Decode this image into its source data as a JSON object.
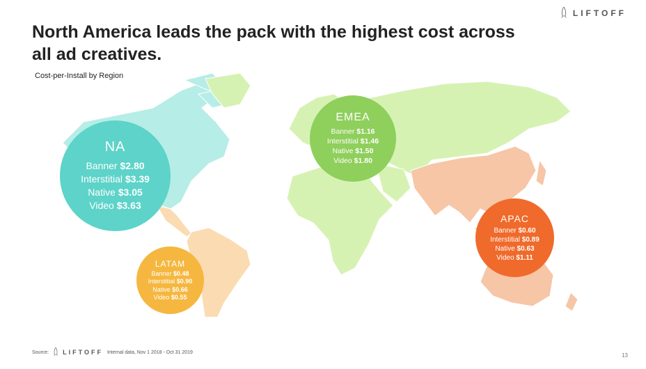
{
  "brand": {
    "name": "LIFTOFF"
  },
  "title": "North America leads the pack with the highest cost across all ad creatives.",
  "subtitle": "Cost-per-Install by Region",
  "colors": {
    "na": "#5dd3c9",
    "emea": "#8fcf5c",
    "apac": "#f06a2b",
    "latam": "#f5b73f",
    "map_na": "#b6ede6",
    "map_emea": "#d6f2b3",
    "map_apac": "#f6c6a6",
    "map_latam": "#fbdbb1"
  },
  "regions": {
    "na": {
      "name": "NA",
      "rows": [
        {
          "label": "Banner",
          "value": "$2.80"
        },
        {
          "label": "Interstitial",
          "value": "$3.39"
        },
        {
          "label": "Native",
          "value": "$3.05"
        },
        {
          "label": "Video",
          "value": "$3.63"
        }
      ]
    },
    "emea": {
      "name": "EMEA",
      "rows": [
        {
          "label": "Banner",
          "value": "$1.16"
        },
        {
          "label": "Interstitial",
          "value": "$1.46"
        },
        {
          "label": "Native",
          "value": "$1.50"
        },
        {
          "label": "Video",
          "value": "$1.80"
        }
      ]
    },
    "apac": {
      "name": "APAC",
      "rows": [
        {
          "label": "Banner",
          "value": "$0.60"
        },
        {
          "label": "Interstitial",
          "value": "$0.89"
        },
        {
          "label": "Native",
          "value": "$0.63"
        },
        {
          "label": "Video",
          "value": "$1.11"
        }
      ]
    },
    "latam": {
      "name": "LATAM",
      "rows": [
        {
          "label": "Banner",
          "value": "$0.48"
        },
        {
          "label": "Interstitial",
          "value": "$0.90"
        },
        {
          "label": "Native",
          "value": "$0.66"
        },
        {
          "label": "Video",
          "value": "$0.55"
        }
      ]
    }
  },
  "footer": {
    "source_label": "Source:",
    "brand": "LIFTOFF",
    "note": "Internal data, Nov 1 2018 - Oct 31 2019"
  },
  "page_number": "13"
}
